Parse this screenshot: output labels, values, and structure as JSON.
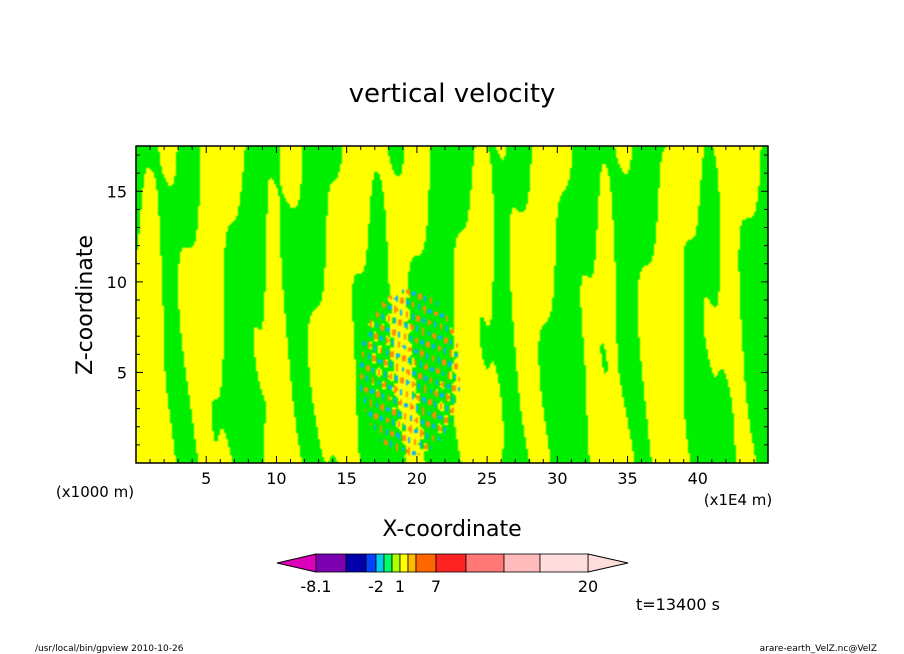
{
  "chart_data": {
    "type": "heatmap",
    "title": "vertical velocity",
    "xlabel": "X-coordinate",
    "ylabel": "Z-coordinate",
    "x_unit_left": "(x1000 m)",
    "x_unit_right": "(x1E4 m)",
    "xlim": [
      0,
      45
    ],
    "ylim": [
      0,
      17.5
    ],
    "x_ticks": [
      "5",
      "10",
      "15",
      "20",
      "25",
      "30",
      "35",
      "40"
    ],
    "y_ticks": [
      "5",
      "10",
      "15"
    ],
    "time_label": "t=13400 s",
    "colorbar": {
      "tick_labels": [
        "-8.1",
        "-2",
        "1",
        "7",
        "20"
      ],
      "colors": [
        "#dd00bb",
        "#7a00b0",
        "#0000aa",
        "#0044ff",
        "#00ccee",
        "#00ff66",
        "#aaff00",
        "#ffff00",
        "#ffbb00",
        "#ff6600",
        "#ff2222",
        "#ff7777",
        "#ffbbbb",
        "#ffdddd"
      ]
    },
    "field_colors": {
      "positive": "#ffff00",
      "negative": "#00ee00",
      "strong_pos": "#ff8c00",
      "strong_neg": "#00b4ff"
    },
    "active_region_x": [
      16,
      23
    ]
  },
  "footer": {
    "left": "/usr/local/bin/gpview  2010-10-26",
    "right": "arare-earth_VelZ.nc@VelZ"
  }
}
